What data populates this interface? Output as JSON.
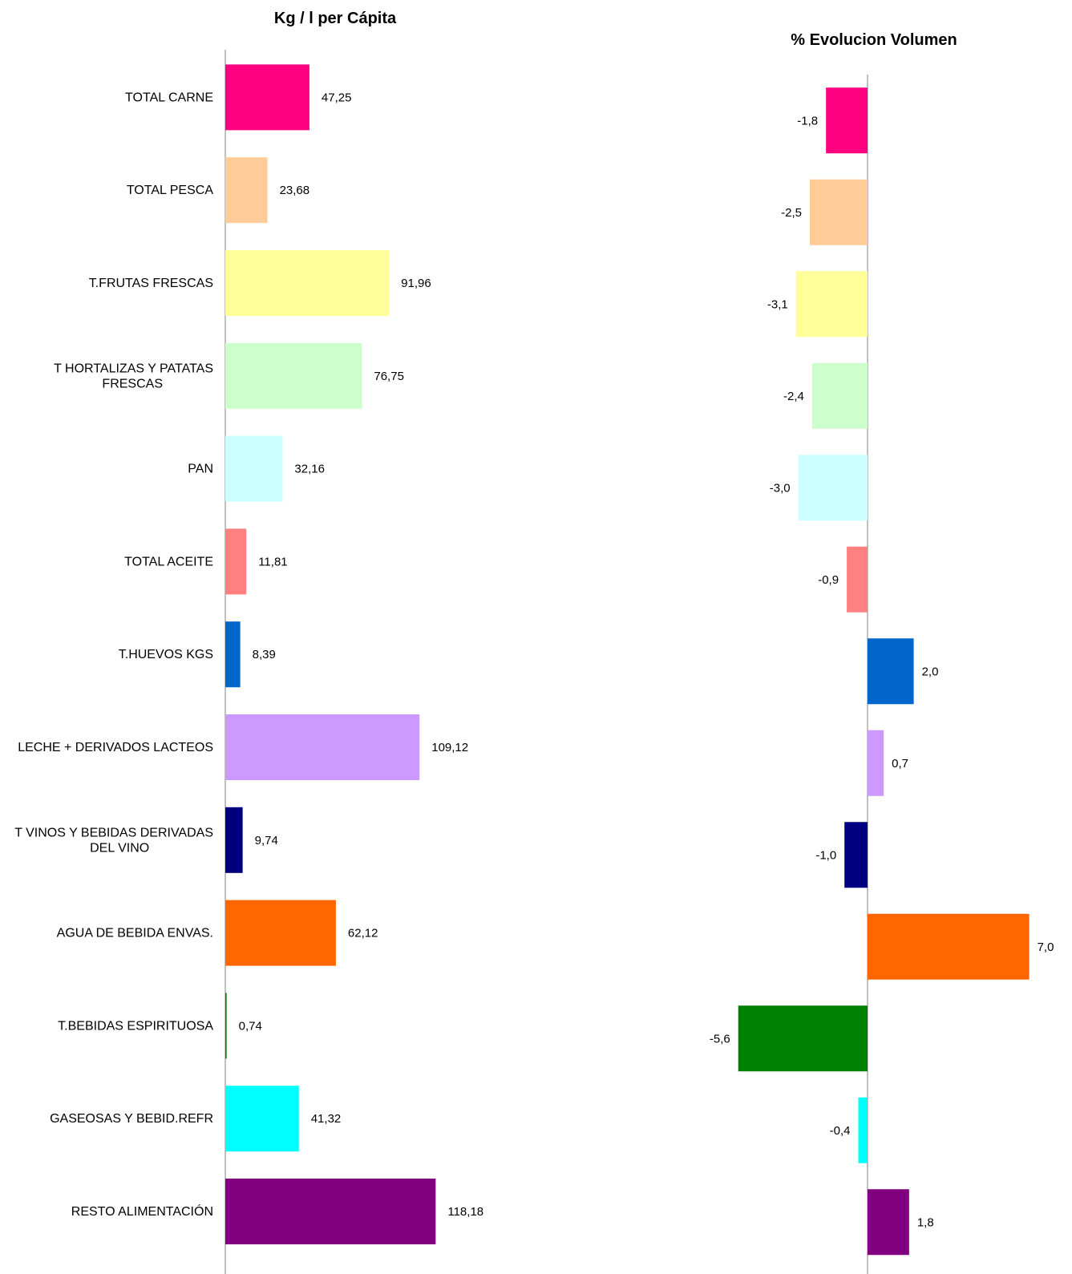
{
  "chart_data": [
    {
      "type": "bar",
      "orientation": "horizontal",
      "title": "Kg / l per Cápita",
      "categories": [
        "TOTAL CARNE",
        "TOTAL PESCA",
        "T.FRUTAS FRESCAS",
        "T HORTALIZAS Y PATATAS FRESCAS",
        "PAN",
        "TOTAL ACEITE",
        "T.HUEVOS KGS",
        "LECHE + DERIVADOS LACTEOS",
        "T VINOS Y BEBIDAS DERIVADAS DEL VINO",
        "AGUA DE BEBIDA ENVAS.",
        "T.BEBIDAS ESPIRITUOSA",
        "GASEOSAS Y BEBID.REFR",
        "RESTO ALIMENTACIÓN"
      ],
      "values": [
        47.25,
        23.68,
        91.96,
        76.75,
        32.16,
        11.81,
        8.39,
        109.12,
        9.74,
        62.12,
        0.74,
        41.32,
        118.18
      ],
      "value_labels": [
        "47,25",
        "23,68",
        "91,96",
        "76,75",
        "32,16",
        "11,81",
        "8,39",
        "109,12",
        "9,74",
        "62,12",
        "0,74",
        "41,32",
        "118,18"
      ],
      "colors": [
        "#FF0080",
        "#FFCC99",
        "#FFFF99",
        "#CCFFCC",
        "#CCFFFF",
        "#FF8080",
        "#0066CC",
        "#CC99FF",
        "#000080",
        "#FF6600",
        "#008000",
        "#00FFFF",
        "#800080"
      ],
      "xlim": [
        0,
        600
      ],
      "grid": false,
      "legend": "none"
    },
    {
      "type": "bar",
      "orientation": "horizontal",
      "title": "% Evolucion Volumen",
      "categories": [
        "TOTAL CARNE",
        "TOTAL PESCA",
        "T.FRUTAS FRESCAS",
        "T HORTALIZAS Y PATATAS FRESCAS",
        "PAN",
        "TOTAL ACEITE",
        "T.HUEVOS KGS",
        "LECHE + DERIVADOS LACTEOS",
        "T VINOS Y BEBIDAS DERIVADAS DEL VINO",
        "AGUA DE BEBIDA ENVAS.",
        "T.BEBIDAS ESPIRITUOSA",
        "GASEOSAS Y BEBID.REFR",
        "RESTO ALIMENTACIÓN"
      ],
      "values": [
        -1.8,
        -2.5,
        -3.1,
        -2.4,
        -3.0,
        -0.9,
        2.0,
        0.7,
        -1.0,
        7.0,
        -5.6,
        -0.4,
        1.8
      ],
      "value_labels": [
        "-1,8",
        "-2,5",
        "-3,1",
        "-2,4",
        "-3,0",
        "-0,9",
        "2,0",
        "0,7",
        "-1,0",
        "7,0",
        "-5,6",
        "-0,4",
        "1,8"
      ],
      "colors": [
        "#FF0080",
        "#FFCC99",
        "#FFFF99",
        "#CCFFCC",
        "#CCFFFF",
        "#FF8080",
        "#0066CC",
        "#CC99FF",
        "#000080",
        "#FF6600",
        "#008000",
        "#00FFFF",
        "#800080"
      ],
      "xlim": [
        -8,
        8
      ],
      "grid": false,
      "legend": "none"
    }
  ]
}
